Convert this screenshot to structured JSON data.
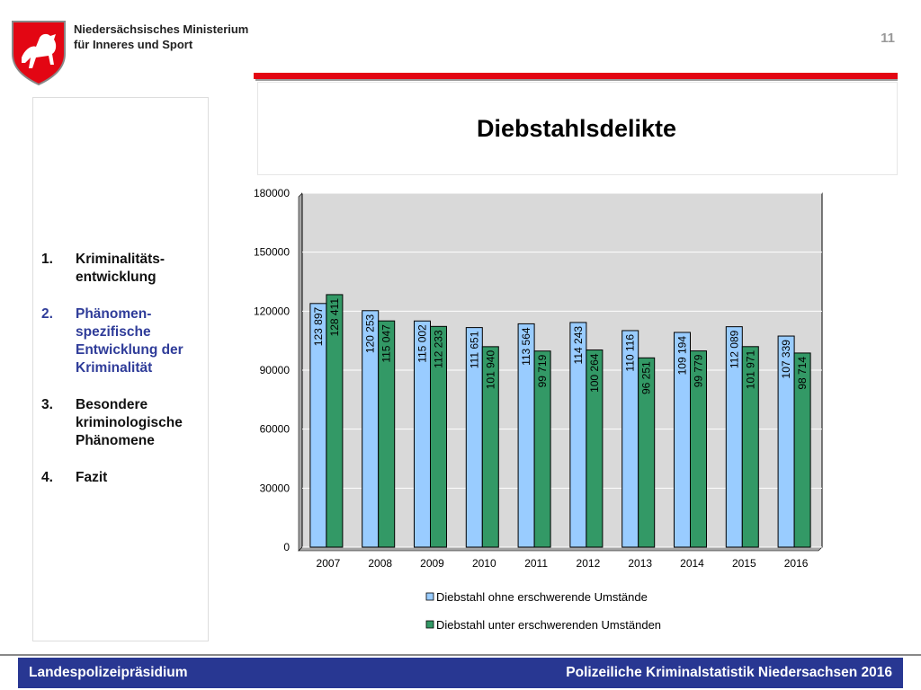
{
  "header": {
    "ministry_line1": "Niedersächsisches Ministerium",
    "ministry_line2": "für Inneres und Sport",
    "page_number": "11"
  },
  "slide_title": "Diebstahlsdelikte",
  "nav": [
    {
      "num": "1.",
      "label": "Kriminalitäts-entwicklung",
      "active": false
    },
    {
      "num": "2.",
      "label": "Phänomen-spezifische Entwicklung der Kriminalität",
      "active": true
    },
    {
      "num": "3.",
      "label": "Besondere kriminologische Phänomene",
      "active": false
    },
    {
      "num": "4.",
      "label": "Fazit",
      "active": false
    }
  ],
  "chart_data": {
    "type": "bar",
    "categories": [
      "2007",
      "2008",
      "2009",
      "2010",
      "2011",
      "2012",
      "2013",
      "2014",
      "2015",
      "2016"
    ],
    "series": [
      {
        "name": "Diebstahl ohne erschwerende Umstände",
        "color": "#99ccff",
        "values": [
          123897,
          120253,
          115002,
          111651,
          113564,
          114243,
          110116,
          109194,
          112089,
          107339
        ],
        "labels": [
          "123 897",
          "120 253",
          "115 002",
          "111 651",
          "113 564",
          "114 243",
          "110 116",
          "109 194",
          "112 089",
          "107 339"
        ]
      },
      {
        "name": "Diebstahl unter erschwerenden Umständen",
        "color": "#339966",
        "values": [
          128411,
          115047,
          112233,
          101940,
          99719,
          100264,
          96251,
          99779,
          101971,
          98714
        ],
        "labels": [
          "128 411",
          "115 047",
          "112 233",
          "101 940",
          "99 719",
          "100 264",
          "96 251",
          "99 779",
          "101 971",
          "98 714"
        ]
      }
    ],
    "ylim": [
      0,
      180000
    ],
    "yticks": [
      "0",
      "30000",
      "60000",
      "90000",
      "120000",
      "150000",
      "180000"
    ],
    "grid": true,
    "legend_position": "bottom",
    "plot_background": "#d9d9d9"
  },
  "footer": {
    "left": "Landespolizeipräsidium",
    "right": "Polizeiliche Kriminalstatistik Niedersachsen 2016"
  }
}
